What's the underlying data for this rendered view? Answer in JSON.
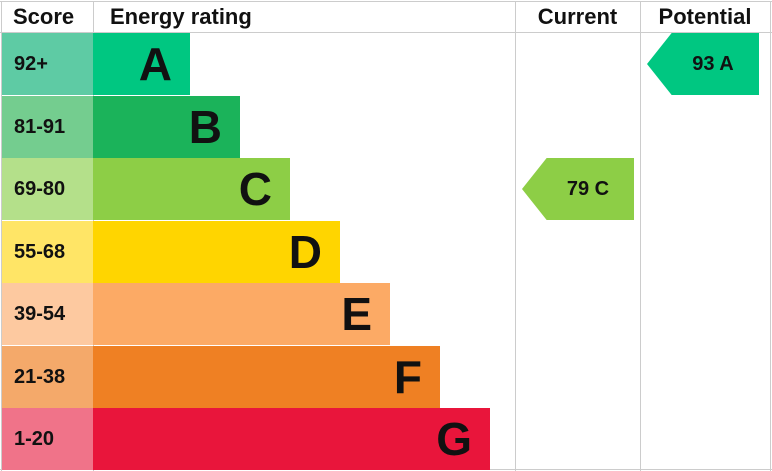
{
  "headers": {
    "score": "Score",
    "rating": "Energy rating",
    "current": "Current",
    "potential": "Potential"
  },
  "bands": [
    {
      "score": "92+",
      "letter": "A",
      "color": "#00c781",
      "score_color": "#5ecba4"
    },
    {
      "score": "81-91",
      "letter": "B",
      "color": "#1bb35a",
      "score_color": "#74cd8f"
    },
    {
      "score": "69-80",
      "letter": "C",
      "color": "#8dce46",
      "score_color": "#b4e08a"
    },
    {
      "score": "55-68",
      "letter": "D",
      "color": "#ffd500",
      "score_color": "#ffe566"
    },
    {
      "score": "39-54",
      "letter": "E",
      "color": "#fcaa65",
      "score_color": "#fdc9a0"
    },
    {
      "score": "21-38",
      "letter": "F",
      "color": "#ef8023",
      "score_color": "#f4a96a"
    },
    {
      "score": "1-20",
      "letter": "G",
      "color": "#e9153b",
      "score_color": "#f07389"
    }
  ],
  "current": {
    "label": "79 C",
    "value": 79,
    "band": "C",
    "color": "#8dce46"
  },
  "potential": {
    "label": "93 A",
    "value": 93,
    "band": "A",
    "color": "#00c781"
  }
}
